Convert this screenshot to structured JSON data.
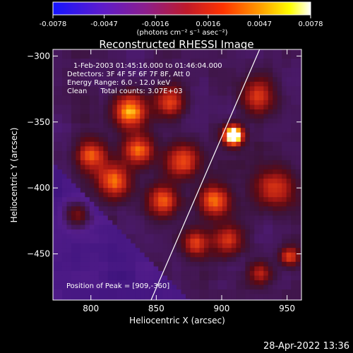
{
  "colorbar": {
    "tick_labels": [
      "-0.0078",
      "-0.0047",
      "-0.0016",
      "0.0016",
      "0.0047",
      "0.0078"
    ],
    "units_text": "(photons cm⁻² s⁻¹ asec⁻²)",
    "range": [
      -0.0078,
      0.0078
    ],
    "colormap": [
      "#1515ff",
      "#5a1bcf",
      "#8c1e8c",
      "#c01a2a",
      "#ff3300",
      "#ff9a00",
      "#ffff00",
      "#ffffff"
    ]
  },
  "plot": {
    "title": "Reconstructed RHESSI Image",
    "info_lines": [
      "1-Feb-2003 01:45:16.000 to 01:46:04.000",
      "Detectors: 3F 4F 5F 6F 7F 8F, Att 0",
      "Energy Range: 6.0 - 12.0 keV",
      "Clean      Total counts: 3.07E+03"
    ],
    "peak_text": "Position of Peak = [909,-360]",
    "timestamp": "28-Apr-2022 13:36"
  },
  "chart_data": {
    "type": "heatmap",
    "title": "Reconstructed RHESSI Image",
    "xlabel": "Heliocentric X (arcsec)",
    "ylabel": "Heliocentric Y (arcsec)",
    "xlim": [
      771,
      961
    ],
    "ylim": [
      -485,
      -295
    ],
    "x_ticks": [
      800,
      850,
      900,
      950
    ],
    "y_ticks": [
      -300,
      -350,
      -400,
      -450
    ],
    "x_tick_labels": [
      "800",
      "850",
      "900",
      "950"
    ],
    "y_tick_labels": [
      "−300",
      "−350",
      "−400",
      "−450"
    ],
    "peak": {
      "x": 909,
      "y": -360
    },
    "limb_line": [
      [
        846,
        -485
      ],
      [
        929,
        -295
      ]
    ],
    "sources": [
      {
        "x": 909,
        "y": -360,
        "amp": 1.0,
        "sigma": 5
      },
      {
        "x": 830,
        "y": -342,
        "amp": 0.55,
        "sigma": 9
      },
      {
        "x": 836,
        "y": -372,
        "amp": 0.5,
        "sigma": 8
      },
      {
        "x": 818,
        "y": -395,
        "amp": 0.48,
        "sigma": 9
      },
      {
        "x": 870,
        "y": -380,
        "amp": 0.45,
        "sigma": 9
      },
      {
        "x": 895,
        "y": -410,
        "amp": 0.5,
        "sigma": 8
      },
      {
        "x": 905,
        "y": -440,
        "amp": 0.42,
        "sigma": 8
      },
      {
        "x": 880,
        "y": -442,
        "amp": 0.38,
        "sigma": 7
      },
      {
        "x": 928,
        "y": -330,
        "amp": 0.4,
        "sigma": 9
      },
      {
        "x": 940,
        "y": -400,
        "amp": 0.42,
        "sigma": 10
      },
      {
        "x": 952,
        "y": -452,
        "amp": 0.4,
        "sigma": 5
      },
      {
        "x": 800,
        "y": -375,
        "amp": 0.42,
        "sigma": 8
      },
      {
        "x": 790,
        "y": -420,
        "amp": 0.35,
        "sigma": 7
      },
      {
        "x": 860,
        "y": -335,
        "amp": 0.4,
        "sigma": 8
      },
      {
        "x": 855,
        "y": -410,
        "amp": 0.45,
        "sigma": 8
      },
      {
        "x": 930,
        "y": -465,
        "amp": 0.3,
        "sigma": 6
      }
    ]
  }
}
